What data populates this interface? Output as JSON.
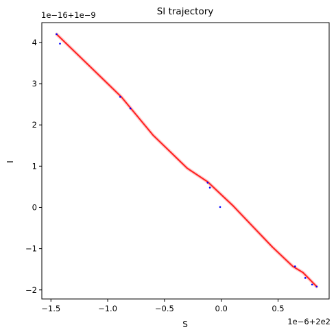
{
  "chart_data": {
    "type": "scatter",
    "title": "SI trajectory",
    "xlabel": "S",
    "ylabel": "I",
    "x_offset_text": "1e−6+2e2",
    "y_offset_text": "1e−16+1e−9",
    "xlim": [
      -1.58,
      0.95
    ],
    "ylim": [
      -2.22,
      4.48
    ],
    "xticks": [
      -1.5,
      -1.0,
      -0.5,
      0.0,
      0.5
    ],
    "xtick_labels": [
      "−1.5",
      "−1.0",
      "−0.5",
      "0.0",
      "0.5"
    ],
    "yticks": [
      -2,
      -1,
      0,
      1,
      2,
      3,
      4
    ],
    "ytick_labels": [
      "−2",
      "−1",
      "0",
      "1",
      "2",
      "3",
      "4"
    ],
    "grid": false,
    "colors": {
      "trajectory": "#ff0000",
      "trajectory_faint": "#ffcccc",
      "points": "#0000ff"
    },
    "series": [
      {
        "values_note": "",
        "x": [
          -1.45,
          -1.0,
          -0.88,
          -0.6,
          -0.3,
          -0.12,
          0.1,
          0.45,
          0.63,
          0.72,
          0.84
        ],
        "y": [
          4.2,
          3.0,
          2.68,
          1.75,
          0.95,
          0.62,
          0.05,
          -0.96,
          -1.43,
          -1.58,
          -1.92
        ]
      }
    ],
    "markers": {
      "x": [
        -1.45,
        -1.42,
        -0.89,
        -0.8,
        -0.12,
        -0.1,
        -0.01,
        0.65,
        0.74,
        0.8,
        0.84
      ],
      "y": [
        4.2,
        3.97,
        2.68,
        2.4,
        0.6,
        0.48,
        0.01,
        -1.43,
        -1.71,
        -1.87,
        -1.92
      ]
    }
  }
}
